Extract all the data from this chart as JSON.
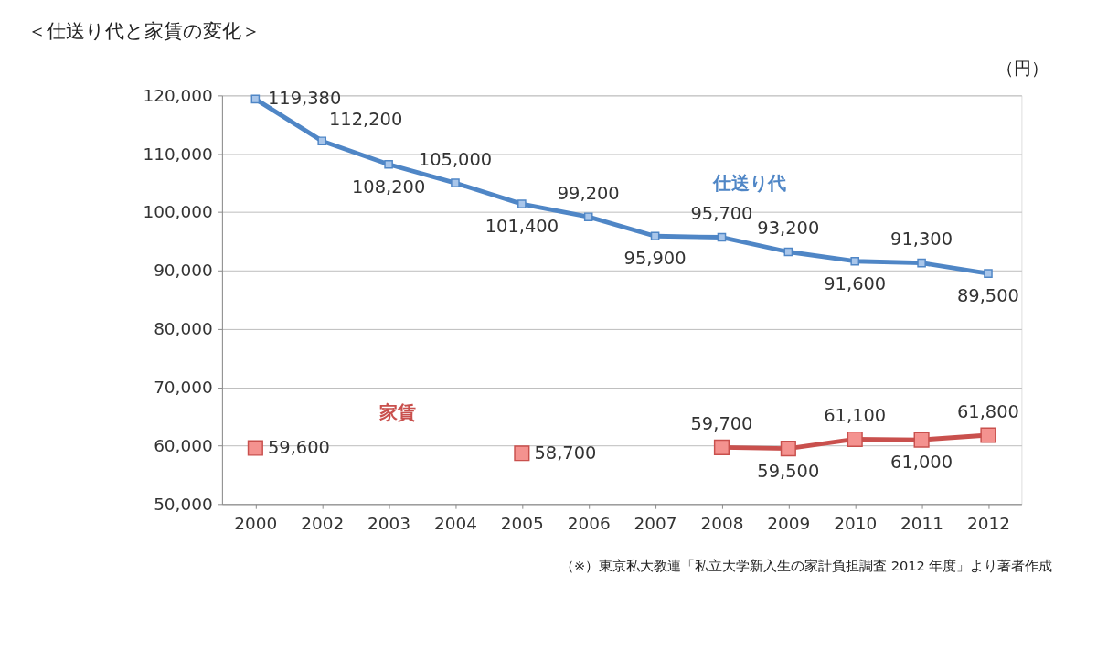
{
  "chart_data": {
    "type": "line",
    "title": "＜仕送り代と家賃の変化＞",
    "ylabel": "（円）",
    "categories": [
      "2000",
      "2002",
      "2003",
      "2004",
      "2005",
      "2006",
      "2007",
      "2008",
      "2009",
      "2010",
      "2011",
      "2012"
    ],
    "series": [
      {
        "name": "仕送り代",
        "color": "#4f86c6",
        "values": [
          119380,
          112200,
          108200,
          105000,
          101400,
          99200,
          95900,
          95700,
          93200,
          91600,
          91300,
          89500
        ],
        "value_labels": [
          "119,380",
          "112,200",
          "108,200",
          "105,000",
          "101,400",
          "99,200",
          "95,900",
          "95,700",
          "93,200",
          "91,600",
          "91,300",
          "89,500"
        ]
      },
      {
        "name": "家賃",
        "color": "#c9504d",
        "values": [
          59600,
          null,
          null,
          null,
          58700,
          null,
          null,
          59700,
          59500,
          61100,
          61000,
          61800
        ],
        "value_labels": [
          "59,600",
          null,
          null,
          null,
          "58,700",
          null,
          null,
          "59,700",
          "59,500",
          "61,100",
          "61,000",
          "61,800"
        ]
      }
    ],
    "ylim": [
      50000,
      120000
    ],
    "yticks": [
      {
        "value": 50000,
        "label": "50,000"
      },
      {
        "value": 60000,
        "label": "60,000"
      },
      {
        "value": 70000,
        "label": "70,000"
      },
      {
        "value": 80000,
        "label": "80,000"
      },
      {
        "value": 90000,
        "label": "90,000"
      },
      {
        "value": 100000,
        "label": "100,000"
      },
      {
        "value": 110000,
        "label": "110,000"
      },
      {
        "value": 120000,
        "label": "120,000"
      }
    ],
    "grid": "y",
    "legend": false,
    "marker": "square",
    "line_style": "solid",
    "annotations": [
      "（※）東京私大教連「私立大学新入生の家計負担調査 2012 年度」より著者作成"
    ]
  }
}
